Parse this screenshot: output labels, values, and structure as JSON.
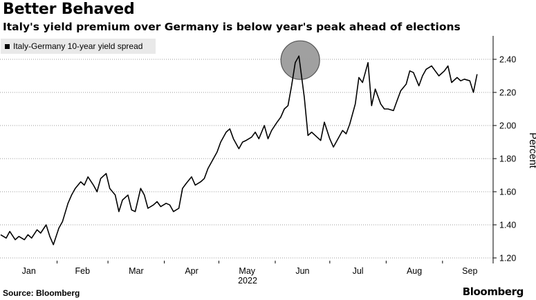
{
  "title": "Better Behaved",
  "subtitle": "Italy's yield premium over Germany is below year's peak ahead of elections",
  "source": "Source: Bloomberg",
  "brand": "Bloomberg",
  "chart_data": {
    "type": "line",
    "title": "Better Behaved",
    "subtitle": "Italy's yield premium over Germany is below year's peak ahead of elections",
    "ylabel": "Percent",
    "xlabel": "",
    "year_label": "2022",
    "ylim": [
      1.2,
      2.45
    ],
    "yticks": [
      1.2,
      1.4,
      1.6,
      1.8,
      2.0,
      2.2,
      2.4
    ],
    "ytick_labels": [
      "1.20",
      "1.40",
      "1.60",
      "1.80",
      "2.00",
      "2.20",
      "2.40"
    ],
    "y_axis_position": "right",
    "grid": "horizontal-dotted",
    "legend_position": "top-left",
    "month_labels": [
      "Jan",
      "Feb",
      "Mar",
      "Apr",
      "May",
      "Jun",
      "Jul",
      "Aug",
      "Sep"
    ],
    "x": [
      "2022-01-01",
      "2022-01-04",
      "2022-01-06",
      "2022-01-09",
      "2022-01-11",
      "2022-01-14",
      "2022-01-16",
      "2022-01-18",
      "2022-01-21",
      "2022-01-23",
      "2022-01-26",
      "2022-01-28",
      "2022-01-30",
      "2022-02-02",
      "2022-02-04",
      "2022-02-07",
      "2022-02-09",
      "2022-02-11",
      "2022-02-14",
      "2022-02-16",
      "2022-02-18",
      "2022-02-21",
      "2022-02-23",
      "2022-02-25",
      "2022-02-28",
      "2022-03-02",
      "2022-03-05",
      "2022-03-07",
      "2022-03-09",
      "2022-03-12",
      "2022-03-14",
      "2022-03-16",
      "2022-03-19",
      "2022-03-21",
      "2022-03-23",
      "2022-03-26",
      "2022-03-28",
      "2022-03-30",
      "2022-04-02",
      "2022-04-04",
      "2022-04-06",
      "2022-04-09",
      "2022-04-11",
      "2022-04-13",
      "2022-04-16",
      "2022-04-18",
      "2022-04-21",
      "2022-04-23",
      "2022-04-25",
      "2022-04-28",
      "2022-04-30",
      "2022-05-02",
      "2022-05-05",
      "2022-05-07",
      "2022-05-09",
      "2022-05-12",
      "2022-05-14",
      "2022-05-16",
      "2022-05-19",
      "2022-05-21",
      "2022-05-23",
      "2022-05-26",
      "2022-05-28",
      "2022-05-30",
      "2022-06-02",
      "2022-06-04",
      "2022-06-06",
      "2022-06-08",
      "2022-06-10",
      "2022-06-12",
      "2022-06-14",
      "2022-06-17",
      "2022-06-19",
      "2022-06-21",
      "2022-06-24",
      "2022-06-26",
      "2022-06-28",
      "2022-07-01",
      "2022-07-03",
      "2022-07-05",
      "2022-07-08",
      "2022-07-10",
      "2022-07-12",
      "2022-07-15",
      "2022-07-17",
      "2022-07-19",
      "2022-07-22",
      "2022-07-24",
      "2022-07-26",
      "2022-07-29",
      "2022-07-31",
      "2022-08-02",
      "2022-08-05",
      "2022-08-07",
      "2022-08-09",
      "2022-08-12",
      "2022-08-14",
      "2022-08-16",
      "2022-08-19",
      "2022-08-21",
      "2022-08-23",
      "2022-08-26",
      "2022-08-28",
      "2022-08-30",
      "2022-09-02",
      "2022-09-04",
      "2022-09-06",
      "2022-09-09",
      "2022-09-11",
      "2022-09-13",
      "2022-09-16",
      "2022-09-18",
      "2022-09-20"
    ],
    "series": [
      {
        "name": "Italy-Germany 10-year yield spread",
        "values": [
          1.34,
          1.32,
          1.36,
          1.31,
          1.33,
          1.31,
          1.34,
          1.32,
          1.37,
          1.35,
          1.4,
          1.33,
          1.28,
          1.38,
          1.42,
          1.53,
          1.58,
          1.62,
          1.66,
          1.64,
          1.69,
          1.64,
          1.6,
          1.68,
          1.71,
          1.62,
          1.58,
          1.48,
          1.55,
          1.58,
          1.49,
          1.48,
          1.62,
          1.58,
          1.5,
          1.52,
          1.54,
          1.51,
          1.53,
          1.52,
          1.48,
          1.5,
          1.62,
          1.65,
          1.69,
          1.64,
          1.66,
          1.68,
          1.74,
          1.8,
          1.84,
          1.9,
          1.96,
          1.98,
          1.92,
          1.86,
          1.9,
          1.91,
          1.93,
          1.96,
          1.92,
          2.0,
          1.92,
          1.97,
          2.02,
          2.05,
          2.1,
          2.12,
          2.24,
          2.38,
          2.42,
          2.17,
          1.94,
          1.96,
          1.93,
          1.91,
          2.02,
          1.92,
          1.87,
          1.91,
          1.97,
          1.95,
          2.01,
          2.13,
          2.29,
          2.26,
          2.38,
          2.12,
          2.22,
          2.13,
          2.1,
          2.1,
          2.09,
          2.15,
          2.21,
          2.25,
          2.33,
          2.32,
          2.24,
          2.3,
          2.34,
          2.36,
          2.33,
          2.3,
          2.33,
          2.36,
          2.26,
          2.29,
          2.27,
          2.28,
          2.27,
          2.2,
          2.31
        ]
      }
    ],
    "annotations": [
      {
        "type": "circle",
        "x": "2022-06-14",
        "y": 2.42,
        "color": "#9b9b9b"
      }
    ],
    "line_color": "#000000"
  }
}
